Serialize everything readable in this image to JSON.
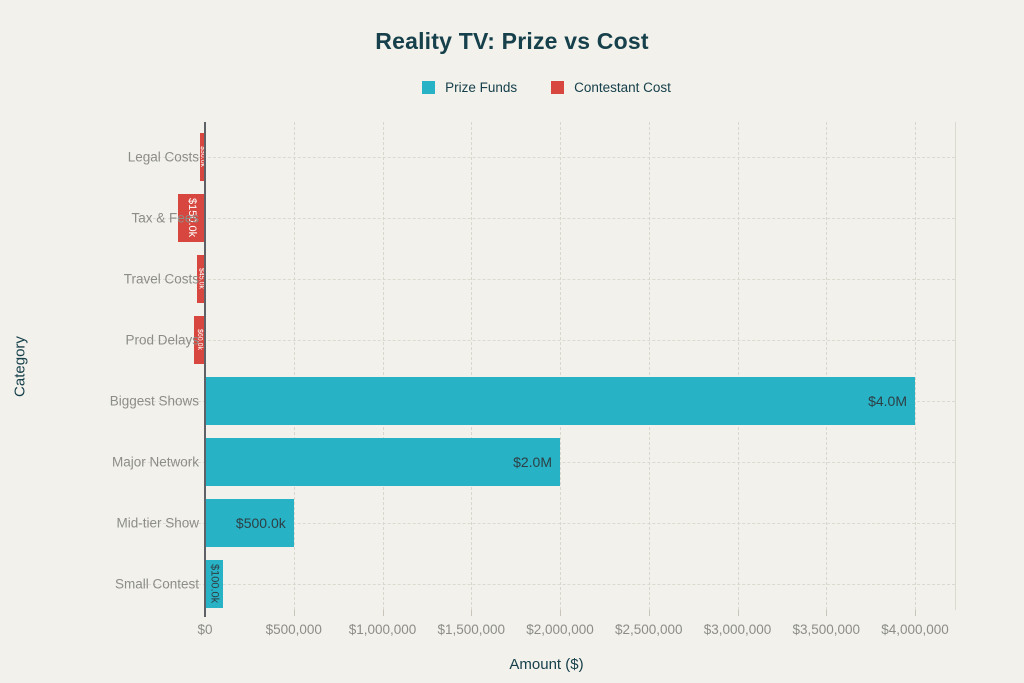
{
  "title": "Reality TV: Prize vs Cost",
  "legend": {
    "items": [
      {
        "label": "Prize Funds",
        "color": "#27b2c6"
      },
      {
        "label": "Contestant Cost",
        "color": "#d7473f"
      }
    ]
  },
  "colors": {
    "background": "#f2f1eb",
    "prize_bar": "#27b2c6",
    "cost_bar": "#d7473f",
    "title_text": "#16404b",
    "tick_text": "#8d8d88",
    "bar_label_dark": "#2e3f44",
    "bar_label_light": "#ffffff"
  },
  "chart_data": {
    "type": "bar",
    "orientation": "horizontal",
    "title": "Reality TV: Prize vs Cost",
    "xlabel": "Amount ($)",
    "ylabel": "Category",
    "grid": true,
    "legend_position": "top-center",
    "xlim": [
      -375000,
      4225000
    ],
    "x_ticks": [
      {
        "value": 0,
        "label": "$0"
      },
      {
        "value": 500000,
        "label": "$500,000"
      },
      {
        "value": 1000000,
        "label": "$1,000,000"
      },
      {
        "value": 1500000,
        "label": "$1,500,000"
      },
      {
        "value": 2000000,
        "label": "$2,000,000"
      },
      {
        "value": 2500000,
        "label": "$2,500,000"
      },
      {
        "value": 3000000,
        "label": "$3,000,000"
      },
      {
        "value": 3500000,
        "label": "$3,500,000"
      },
      {
        "value": 4000000,
        "label": "$4,000,000"
      }
    ],
    "series_names": [
      "Prize Funds",
      "Contestant Cost"
    ],
    "rows": [
      {
        "category": "Legal Costs",
        "series": "Contestant Cost",
        "value": 30000,
        "label": "$30.0k",
        "direction": "left",
        "label_layout": "vertical-tiny",
        "label_color": "#ffffff"
      },
      {
        "category": "Tax & Fees",
        "series": "Contestant Cost",
        "value": 150000,
        "label": "$150.0k",
        "direction": "left",
        "label_layout": "vertical",
        "label_color": "#ffffff"
      },
      {
        "category": "Travel Costs",
        "series": "Contestant Cost",
        "value": 45000,
        "label": "$45.0k",
        "direction": "left",
        "label_layout": "vertical-tiny",
        "label_color": "#ffffff"
      },
      {
        "category": "Prod Delays",
        "series": "Contestant Cost",
        "value": 60000,
        "label": "$60.0k",
        "direction": "left",
        "label_layout": "vertical-tiny",
        "label_color": "#ffffff"
      },
      {
        "category": "Biggest Shows",
        "series": "Prize Funds",
        "value": 4000000,
        "label": "$4.0M",
        "direction": "right",
        "label_layout": "horizontal",
        "label_color": "#2e3f44"
      },
      {
        "category": "Major Network",
        "series": "Prize Funds",
        "value": 2000000,
        "label": "$2.0M",
        "direction": "right",
        "label_layout": "horizontal",
        "label_color": "#2e3f44"
      },
      {
        "category": "Mid-tier Show",
        "series": "Prize Funds",
        "value": 500000,
        "label": "$500.0k",
        "direction": "right",
        "label_layout": "horizontal",
        "label_color": "#2e3f44"
      },
      {
        "category": "Small Contest",
        "series": "Prize Funds",
        "value": 100000,
        "label": "$100.0k",
        "direction": "right",
        "label_layout": "vertical",
        "label_color": "#2e3f44"
      }
    ]
  }
}
